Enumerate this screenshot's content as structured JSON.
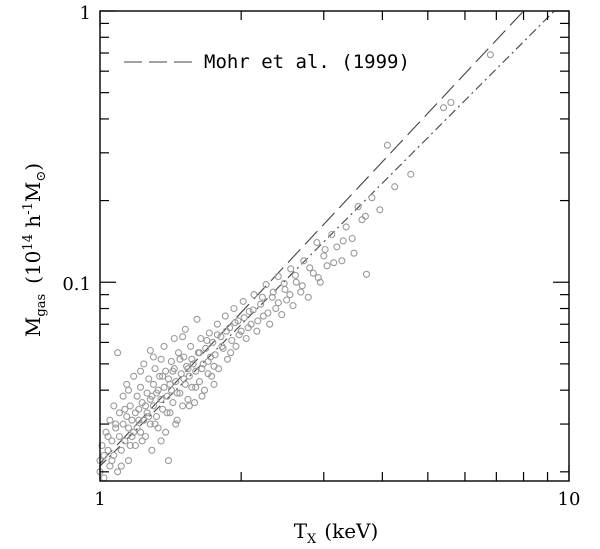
{
  "chart_data": {
    "type": "scatter",
    "xscale": "log",
    "yscale": "log",
    "xlim": [
      1,
      10
    ],
    "ylim": [
      0.0185,
      1
    ],
    "xlabel": "T",
    "xlabel_sub": "X",
    "xlabel_unit": "(keV)",
    "ylabel": "M",
    "ylabel_sub": "gas",
    "ylabel_unit_pre": "(10",
    "ylabel_unit_exp1": "14",
    "ylabel_unit_mid": " h",
    "ylabel_unit_exp2": "-1",
    "ylabel_unit_post": "M",
    "ylabel_unit_sun": "⊙",
    "ylabel_unit_close": ")",
    "x_tick_labels": [
      {
        "value": 1,
        "label": "1"
      },
      {
        "value": 10,
        "label": "10"
      }
    ],
    "y_tick_labels": [
      {
        "value": 0.1,
        "label": "0.1"
      },
      {
        "value": 1,
        "label": "1"
      }
    ],
    "legend": {
      "placement": "top-left",
      "entries": [
        {
          "label": "Mohr et al. (1999)",
          "style": "dashed"
        }
      ]
    },
    "lines": [
      {
        "style": "dashed",
        "x": [
          1,
          8
        ],
        "y": [
          0.0215,
          1.0
        ]
      },
      {
        "style": "dash-dot",
        "x": [
          1,
          9.3
        ],
        "y": [
          0.021,
          1.0
        ]
      }
    ],
    "points": [
      [
        1.0,
        0.022
      ],
      [
        1.01,
        0.025
      ],
      [
        1.02,
        0.019
      ],
      [
        1.03,
        0.028
      ],
      [
        1.04,
        0.024
      ],
      [
        1.05,
        0.031
      ],
      [
        1.05,
        0.021
      ],
      [
        1.06,
        0.026
      ],
      [
        1.07,
        0.035
      ],
      [
        1.07,
        0.023
      ],
      [
        1.08,
        0.029
      ],
      [
        1.09,
        0.055
      ],
      [
        1.09,
        0.02
      ],
      [
        1.1,
        0.027
      ],
      [
        1.1,
        0.033
      ],
      [
        1.11,
        0.024
      ],
      [
        1.12,
        0.038
      ],
      [
        1.12,
        0.03
      ],
      [
        1.13,
        0.026
      ],
      [
        1.14,
        0.032
      ],
      [
        1.14,
        0.042
      ],
      [
        1.15,
        0.022
      ],
      [
        1.15,
        0.029
      ],
      [
        1.16,
        0.035
      ],
      [
        1.17,
        0.027
      ],
      [
        1.17,
        0.031
      ],
      [
        1.18,
        0.045
      ],
      [
        1.19,
        0.033
      ],
      [
        1.19,
        0.025
      ],
      [
        1.2,
        0.038
      ],
      [
        1.2,
        0.029
      ],
      [
        1.21,
        0.034
      ],
      [
        1.22,
        0.041
      ],
      [
        1.22,
        0.028
      ],
      [
        1.23,
        0.036
      ],
      [
        1.24,
        0.031
      ],
      [
        1.24,
        0.05
      ],
      [
        1.25,
        0.027
      ],
      [
        1.26,
        0.039
      ],
      [
        1.26,
        0.033
      ],
      [
        1.27,
        0.044
      ],
      [
        1.28,
        0.03
      ],
      [
        1.28,
        0.037
      ],
      [
        1.29,
        0.024
      ],
      [
        1.3,
        0.042
      ],
      [
        1.3,
        0.035
      ],
      [
        1.31,
        0.048
      ],
      [
        1.32,
        0.032
      ],
      [
        1.32,
        0.039
      ],
      [
        1.33,
        0.029
      ],
      [
        1.34,
        0.045
      ],
      [
        1.35,
        0.037
      ],
      [
        1.35,
        0.052
      ],
      [
        1.36,
        0.034
      ],
      [
        1.37,
        0.041
      ],
      [
        1.38,
        0.028
      ],
      [
        1.38,
        0.047
      ],
      [
        1.39,
        0.038
      ],
      [
        1.4,
        0.044
      ],
      [
        1.41,
        0.033
      ],
      [
        1.42,
        0.051
      ],
      [
        1.42,
        0.04
      ],
      [
        1.43,
        0.036
      ],
      [
        1.44,
        0.048
      ],
      [
        1.45,
        0.043
      ],
      [
        1.46,
        0.031
      ],
      [
        1.47,
        0.055
      ],
      [
        1.48,
        0.039
      ],
      [
        1.49,
        0.046
      ],
      [
        1.5,
        0.035
      ],
      [
        1.51,
        0.053
      ],
      [
        1.52,
        0.042
      ],
      [
        1.53,
        0.049
      ],
      [
        1.54,
        0.037
      ],
      [
        1.55,
        0.045
      ],
      [
        1.56,
        0.058
      ],
      [
        1.57,
        0.041
      ],
      [
        1.58,
        0.05
      ],
      [
        1.59,
        0.036
      ],
      [
        1.6,
        0.047
      ],
      [
        1.62,
        0.055
      ],
      [
        1.63,
        0.043
      ],
      [
        1.64,
        0.062
      ],
      [
        1.65,
        0.048
      ],
      [
        1.67,
        0.04
      ],
      [
        1.68,
        0.057
      ],
      [
        1.7,
        0.051
      ],
      [
        1.71,
        0.065
      ],
      [
        1.73,
        0.045
      ],
      [
        1.74,
        0.06
      ],
      [
        1.76,
        0.054
      ],
      [
        1.78,
        0.07
      ],
      [
        1.79,
        0.048
      ],
      [
        1.81,
        0.063
      ],
      [
        1.83,
        0.057
      ],
      [
        1.85,
        0.075
      ],
      [
        1.87,
        0.052
      ],
      [
        1.89,
        0.068
      ],
      [
        1.91,
        0.061
      ],
      [
        1.93,
        0.08
      ],
      [
        1.95,
        0.058
      ],
      [
        1.97,
        0.072
      ],
      [
        2.0,
        0.066
      ],
      [
        2.02,
        0.085
      ],
      [
        2.05,
        0.062
      ],
      [
        2.08,
        0.078
      ],
      [
        2.1,
        0.07
      ],
      [
        2.13,
        0.09
      ],
      [
        2.16,
        0.066
      ],
      [
        2.2,
        0.083
      ],
      [
        2.23,
        0.075
      ],
      [
        2.26,
        0.098
      ],
      [
        2.3,
        0.07
      ],
      [
        2.33,
        0.088
      ],
      [
        2.37,
        0.08
      ],
      [
        2.4,
        0.105
      ],
      [
        2.44,
        0.076
      ],
      [
        2.48,
        0.094
      ],
      [
        2.5,
        0.086
      ],
      [
        2.55,
        0.112
      ],
      [
        2.58,
        0.082
      ],
      [
        2.62,
        0.1
      ],
      [
        2.68,
        0.092
      ],
      [
        2.72,
        0.12
      ],
      [
        2.78,
        0.088
      ],
      [
        2.85,
        0.108
      ],
      [
        2.9,
        0.14
      ],
      [
        2.95,
        0.1
      ],
      [
        3.0,
        0.125
      ],
      [
        3.05,
        0.115
      ],
      [
        3.12,
        0.15
      ],
      [
        3.2,
        0.135
      ],
      [
        3.28,
        0.12
      ],
      [
        3.35,
        0.16
      ],
      [
        3.45,
        0.145
      ],
      [
        3.55,
        0.19
      ],
      [
        3.62,
        0.17
      ],
      [
        3.7,
        0.107
      ],
      [
        3.8,
        0.205
      ],
      [
        3.95,
        0.185
      ],
      [
        4.1,
        0.32
      ],
      [
        4.25,
        0.225
      ],
      [
        4.6,
        0.25
      ],
      [
        5.4,
        0.44
      ],
      [
        5.6,
        0.46
      ],
      [
        6.8,
        0.69
      ],
      [
        1.0,
        0.02
      ],
      [
        1.02,
        0.023
      ],
      [
        1.04,
        0.027
      ],
      [
        1.06,
        0.022
      ],
      [
        1.08,
        0.03
      ],
      [
        1.11,
        0.021
      ],
      [
        1.13,
        0.034
      ],
      [
        1.16,
        0.025
      ],
      [
        1.18,
        0.028
      ],
      [
        1.21,
        0.031
      ],
      [
        1.23,
        0.026
      ],
      [
        1.25,
        0.035
      ],
      [
        1.27,
        0.032
      ],
      [
        1.29,
        0.038
      ],
      [
        1.31,
        0.03
      ],
      [
        1.33,
        0.04
      ],
      [
        1.36,
        0.045
      ],
      [
        1.39,
        0.033
      ],
      [
        1.41,
        0.042
      ],
      [
        1.43,
        0.047
      ],
      [
        1.46,
        0.039
      ],
      [
        1.48,
        0.052
      ],
      [
        1.51,
        0.044
      ],
      [
        1.54,
        0.048
      ],
      [
        1.57,
        0.052
      ],
      [
        1.6,
        0.041
      ],
      [
        1.63,
        0.055
      ],
      [
        1.66,
        0.05
      ],
      [
        1.69,
        0.061
      ],
      [
        1.72,
        0.053
      ],
      [
        1.75,
        0.049
      ],
      [
        1.78,
        0.064
      ],
      [
        1.82,
        0.058
      ],
      [
        1.86,
        0.066
      ],
      [
        1.9,
        0.055
      ],
      [
        1.94,
        0.071
      ],
      [
        1.98,
        0.064
      ],
      [
        2.03,
        0.074
      ],
      [
        2.07,
        0.068
      ],
      [
        2.12,
        0.079
      ],
      [
        2.17,
        0.072
      ],
      [
        2.22,
        0.088
      ],
      [
        2.28,
        0.077
      ],
      [
        2.34,
        0.092
      ],
      [
        2.4,
        0.084
      ],
      [
        2.47,
        0.099
      ],
      [
        2.54,
        0.09
      ],
      [
        2.61,
        0.106
      ],
      [
        2.7,
        0.097
      ],
      [
        2.8,
        0.113
      ],
      [
        2.92,
        0.104
      ],
      [
        3.02,
        0.132
      ],
      [
        3.15,
        0.118
      ],
      [
        3.3,
        0.142
      ],
      [
        3.48,
        0.128
      ],
      [
        3.68,
        0.175
      ],
      [
        1.15,
        0.04
      ],
      [
        1.22,
        0.047
      ],
      [
        1.3,
        0.053
      ],
      [
        1.37,
        0.058
      ],
      [
        1.44,
        0.062
      ],
      [
        1.52,
        0.067
      ],
      [
        1.61,
        0.073
      ],
      [
        1.7,
        0.046
      ],
      [
        1.35,
        0.026
      ],
      [
        1.45,
        0.03
      ],
      [
        1.55,
        0.035
      ],
      [
        1.65,
        0.038
      ],
      [
        1.75,
        0.042
      ],
      [
        1.28,
        0.056
      ],
      [
        1.4,
        0.022
      ],
      [
        1.5,
        0.063
      ]
    ]
  },
  "legend_text": "Mohr et al. (1999)",
  "x_tick_min_label": "1",
  "x_tick_max_label": "10",
  "y_tick_mid_label": "0.1",
  "y_tick_max_label": "1"
}
